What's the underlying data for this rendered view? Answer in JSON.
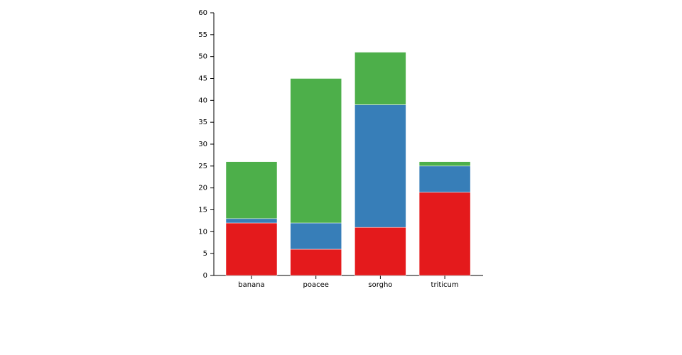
{
  "chart_data": {
    "type": "stacked_bar",
    "categories": [
      "banana",
      "poacee",
      "sorgho",
      "triticum"
    ],
    "series": [
      {
        "color": "#e41a1c",
        "values": [
          12,
          6,
          11,
          19
        ]
      },
      {
        "color": "#377eb8",
        "values": [
          1,
          6,
          28,
          6
        ]
      },
      {
        "color": "#4daf4a",
        "values": [
          13,
          33,
          12,
          1
        ]
      }
    ],
    "ylim": [
      0,
      60
    ],
    "yticks": [
      0,
      5,
      10,
      15,
      20,
      25,
      30,
      35,
      40,
      45,
      50,
      55,
      60
    ]
  }
}
